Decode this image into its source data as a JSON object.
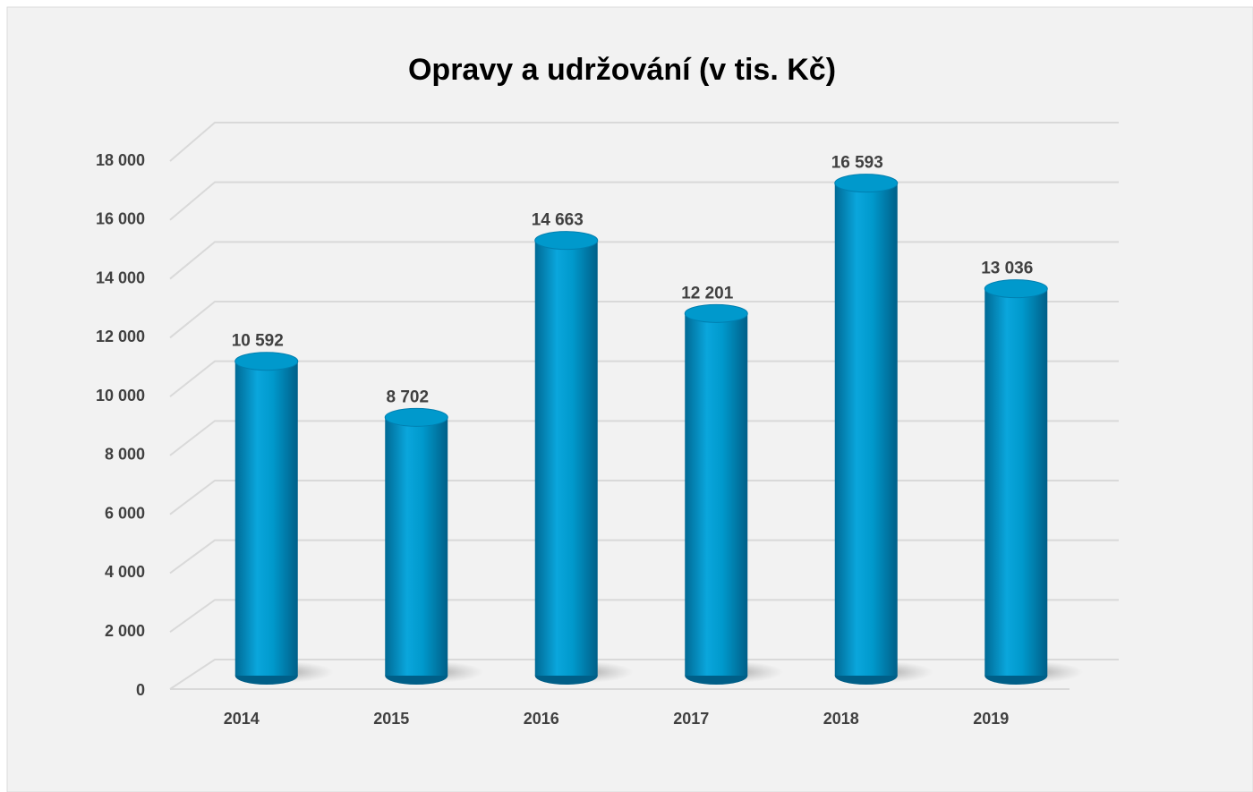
{
  "chart_data": {
    "type": "bar",
    "title": "Opravy a udržování (v tis. Kč)",
    "categories": [
      "2014",
      "2015",
      "2016",
      "2017",
      "2018",
      "2019"
    ],
    "values": [
      10592,
      8702,
      14663,
      12201,
      16593,
      13036
    ],
    "value_labels": [
      "10 592",
      "8 702",
      "14 663",
      "12 201",
      "16 593",
      "13 036"
    ],
    "color": "#0099cc",
    "ylim": [
      0,
      18000
    ],
    "yticks": [
      0,
      {
        "value": 2000,
        "label": "2 000"
      },
      {
        "value": 4000,
        "label": "4 000"
      },
      {
        "value": 6000,
        "label": "6 000"
      },
      {
        "value": 8000,
        "label": "8 000"
      },
      {
        "value": 10000,
        "label": "10 000"
      },
      {
        "value": 12000,
        "label": "12 000"
      },
      {
        "value": 14000,
        "label": "14 000"
      },
      {
        "value": 16000,
        "label": "16 000"
      },
      {
        "value": 18000,
        "label": "18 000"
      }
    ],
    "grid": true
  }
}
